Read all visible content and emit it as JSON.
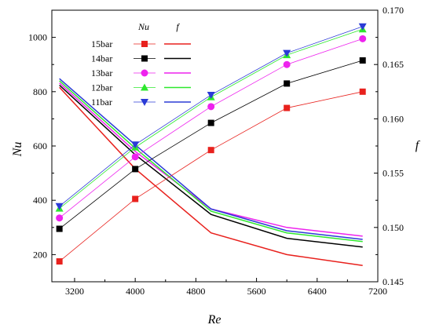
{
  "chart_data": {
    "type": "line",
    "xlabel": "Re",
    "ylabel_left": "Nu",
    "ylabel_right": "f",
    "xlim": [
      2900,
      7200
    ],
    "ylim_left": [
      100,
      1100
    ],
    "ylim_right": [
      0.145,
      0.17
    ],
    "x_ticks": [
      3200,
      4000,
      4800,
      5600,
      6400,
      7200
    ],
    "y_left_ticks": [
      200,
      400,
      600,
      800,
      1000
    ],
    "y_right_ticks": [
      "0.145",
      "0.150",
      "0.155",
      "0.160",
      "0.165",
      "0.170"
    ],
    "grid": false,
    "legend_position": "top-left",
    "legend_headers": [
      "Nu",
      "f"
    ],
    "x": [
      3000,
      4000,
      5000,
      6000,
      7000
    ],
    "series": [
      {
        "name": "15bar",
        "color": "#e8211d",
        "marker": "square",
        "nu": [
          175,
          405,
          585,
          740,
          800
        ],
        "f": [
          0.1629,
          0.1554,
          0.1495,
          0.1475,
          0.1465
        ]
      },
      {
        "name": "14bar",
        "color": "#000000",
        "marker": "square",
        "nu": [
          295,
          515,
          685,
          830,
          915
        ],
        "f": [
          0.1631,
          0.1567,
          0.1512,
          0.149,
          0.1482
        ]
      },
      {
        "name": "13bar",
        "color": "#ee22ee",
        "marker": "circle",
        "nu": [
          335,
          560,
          745,
          900,
          995
        ],
        "f": [
          0.1633,
          0.157,
          0.1517,
          0.15,
          0.1492
        ]
      },
      {
        "name": "12bar",
        "color": "#2ee82e",
        "marker": "triangle-up",
        "nu": [
          370,
          595,
          780,
          935,
          1030
        ],
        "f": [
          0.1635,
          0.1573,
          0.1515,
          0.1495,
          0.1487
        ]
      },
      {
        "name": "11bar",
        "color": "#2b3bd6",
        "marker": "triangle-down",
        "nu": [
          378,
          605,
          788,
          942,
          1040
        ],
        "f": [
          0.1637,
          0.1576,
          0.1517,
          0.1497,
          0.1489
        ]
      }
    ]
  }
}
